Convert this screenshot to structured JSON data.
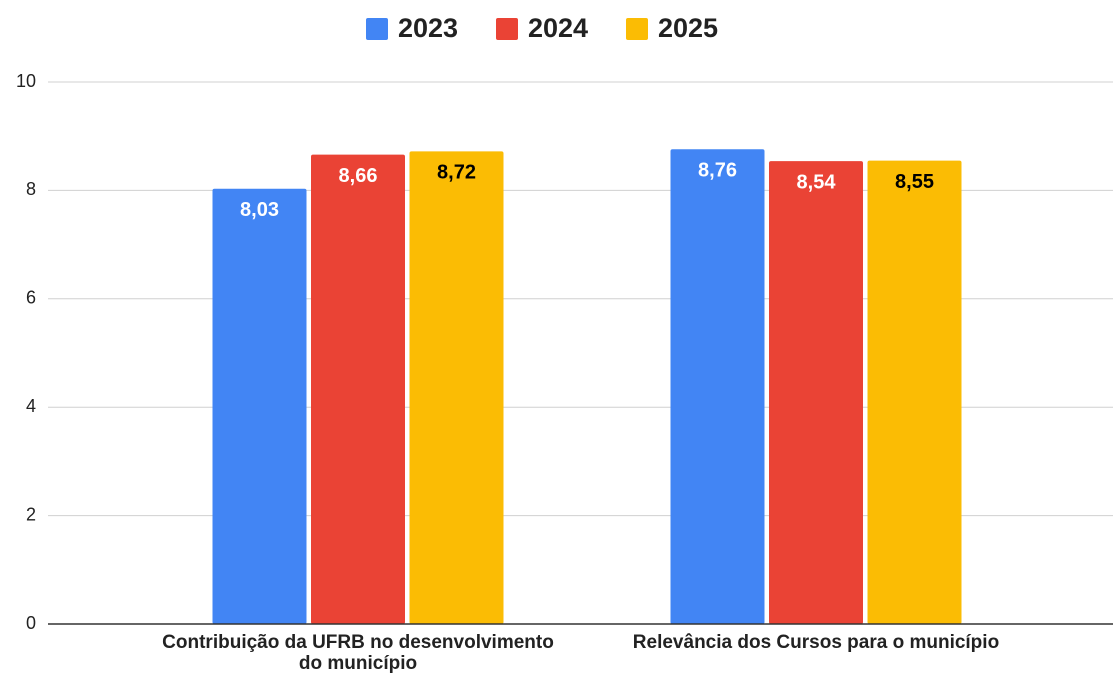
{
  "chart_data": {
    "type": "bar",
    "categories": [
      "Contribuição da UFRB no desenvolvimento do município",
      "Relevância dos Cursos para o município"
    ],
    "series": [
      {
        "name": "2023",
        "color": "#4285f4",
        "label_color": "#ffffff",
        "values": [
          8.03,
          8.76
        ],
        "value_labels": [
          "8,03",
          "8,76"
        ]
      },
      {
        "name": "2024",
        "color": "#ea4335",
        "label_color": "#ffffff",
        "values": [
          8.66,
          8.54
        ],
        "value_labels": [
          "8,66",
          "8,54"
        ]
      },
      {
        "name": "2025",
        "color": "#fbbc04",
        "label_color": "#000000",
        "values": [
          8.72,
          8.55
        ],
        "value_labels": [
          "8,72",
          "8,55"
        ]
      }
    ],
    "ylim": [
      0,
      10
    ],
    "yticks": [
      0,
      2,
      4,
      6,
      8,
      10
    ],
    "grid": true,
    "legend": "top"
  }
}
